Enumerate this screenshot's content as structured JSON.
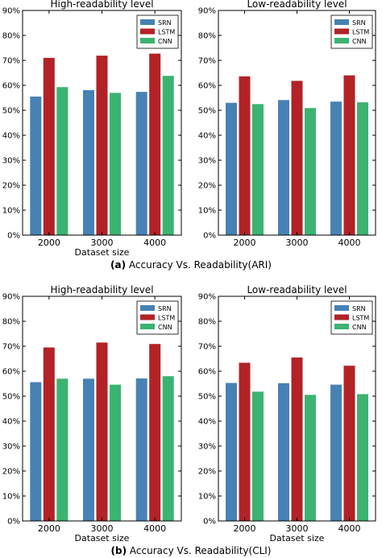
{
  "captions": [
    {
      "label": "(a)",
      "text": "Accuracy Vs. Readability(ARI)"
    },
    {
      "label": "(b)",
      "text": "Accuracy Vs. Readability(CLI)"
    }
  ],
  "chart_data": [
    {
      "type": "bar",
      "title": "High-readability level",
      "xlabel": "Dataset size",
      "ylabel": "",
      "categories": [
        "2000",
        "3000",
        "4000"
      ],
      "ylim": [
        0,
        90
      ],
      "yticks": [
        "0%",
        "10%",
        "20%",
        "30%",
        "40%",
        "50%",
        "60%",
        "70%",
        "80%",
        "90%"
      ],
      "legend": "top-right",
      "grid": false,
      "series": [
        {
          "name": "SRN",
          "color": "#4682b4",
          "values": [
            55.5,
            58.1,
            57.4
          ]
        },
        {
          "name": "LSTM",
          "color": "#b22226",
          "values": [
            71.0,
            71.9,
            72.7
          ]
        },
        {
          "name": "CNN",
          "color": "#3cb371",
          "values": [
            59.3,
            57.0,
            63.8
          ]
        }
      ]
    },
    {
      "type": "bar",
      "title": "Low-readability level",
      "xlabel": "",
      "ylabel": "",
      "categories": [
        "2000",
        "3000",
        "4000"
      ],
      "ylim": [
        0,
        90
      ],
      "yticks": [
        "0%",
        "10%",
        "20%",
        "30%",
        "40%",
        "50%",
        "60%",
        "70%",
        "80%",
        "90%"
      ],
      "legend": "top-right",
      "grid": false,
      "series": [
        {
          "name": "SRN",
          "color": "#4682b4",
          "values": [
            53.0,
            54.1,
            53.5
          ]
        },
        {
          "name": "LSTM",
          "color": "#b22226",
          "values": [
            63.6,
            61.8,
            64.0
          ]
        },
        {
          "name": "CNN",
          "color": "#3cb371",
          "values": [
            52.5,
            50.9,
            53.2
          ]
        }
      ]
    },
    {
      "type": "bar",
      "title": "High-readability level",
      "xlabel": "Dataset size",
      "ylabel": "",
      "categories": [
        "2000",
        "3000",
        "4000"
      ],
      "ylim": [
        0,
        90
      ],
      "yticks": [
        "0%",
        "10%",
        "20%",
        "30%",
        "40%",
        "50%",
        "60%",
        "70%",
        "80%",
        "90%"
      ],
      "legend": "top-right",
      "grid": false,
      "series": [
        {
          "name": "SRN",
          "color": "#4682b4",
          "values": [
            55.6,
            57.0,
            57.1
          ]
        },
        {
          "name": "LSTM",
          "color": "#b22226",
          "values": [
            69.5,
            71.5,
            70.9
          ]
        },
        {
          "name": "CNN",
          "color": "#3cb371",
          "values": [
            57.0,
            54.6,
            58.0
          ]
        }
      ]
    },
    {
      "type": "bar",
      "title": "Low-readability level",
      "xlabel": "Dataset size",
      "ylabel": "",
      "categories": [
        "2000",
        "3000",
        "4000"
      ],
      "ylim": [
        0,
        90
      ],
      "yticks": [
        "0%",
        "10%",
        "20%",
        "30%",
        "40%",
        "50%",
        "60%",
        "70%",
        "80%",
        "90%"
      ],
      "legend": "top-right",
      "grid": false,
      "series": [
        {
          "name": "SRN",
          "color": "#4682b4",
          "values": [
            55.3,
            55.2,
            54.6
          ]
        },
        {
          "name": "LSTM",
          "color": "#b22226",
          "values": [
            63.4,
            65.5,
            62.2
          ]
        },
        {
          "name": "CNN",
          "color": "#3cb371",
          "values": [
            51.8,
            50.5,
            50.8
          ]
        }
      ]
    }
  ]
}
